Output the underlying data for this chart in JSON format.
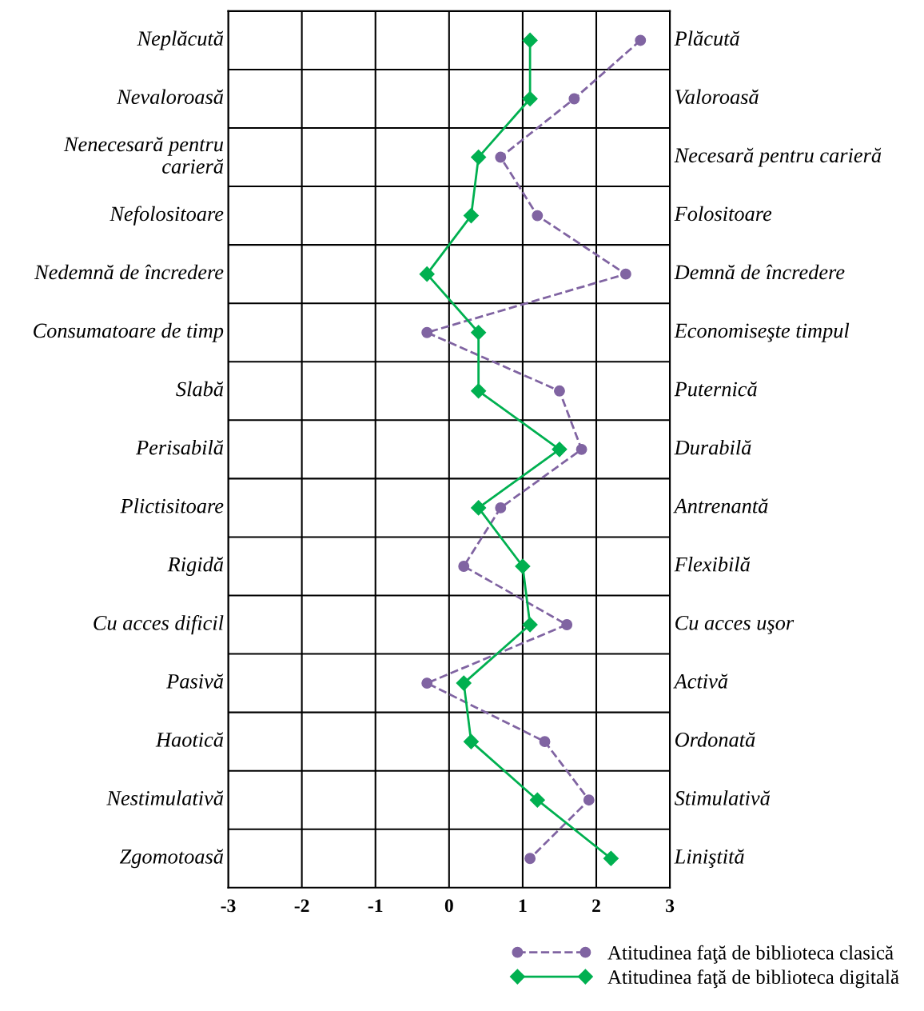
{
  "chart_data": {
    "type": "line",
    "orientation": "horizontal",
    "categories": [
      "Neplăcută",
      "Nevaloroasă",
      "Nenecesară pentru\ncarieră",
      "Nefolositoare",
      "Nedemnă de încredere",
      "Consumatoare de timp",
      "Slabă",
      "Perisabilă",
      "Plictisitoare",
      "Rigidă",
      "Cu acces dificil",
      "Pasivă",
      "Haotică",
      "Nestimulativă",
      "Zgomotoasă"
    ],
    "y2_categories": [
      "Plăcută",
      "Valoroasă",
      "Necesară pentru carieră",
      "Folositoare",
      "Demnă de încredere",
      "Economiseşte timpul",
      "Puternică",
      "Durabilă",
      "Antrenantă",
      "Flexibilă",
      "Cu acces uşor",
      "Activă",
      "Ordonată",
      "Stimulativă",
      "Liniştită"
    ],
    "series": [
      {
        "name": "Atitudinea faţă de biblioteca clasică",
        "color": "#8064a2",
        "marker": "circle",
        "line_style": "dashed",
        "values": [
          2.6,
          1.7,
          0.7,
          1.2,
          2.4,
          -0.3,
          1.5,
          1.8,
          0.7,
          0.2,
          1.6,
          -0.3,
          1.3,
          1.9,
          1.1
        ]
      },
      {
        "name": "Atitudinea faţă de biblioteca digitală",
        "color": "#00b050",
        "marker": "diamond",
        "line_style": "solid",
        "values": [
          1.1,
          1.1,
          0.4,
          0.3,
          -0.3,
          0.4,
          0.4,
          1.5,
          0.4,
          1.0,
          1.1,
          0.2,
          0.3,
          1.2,
          2.2
        ]
      }
    ],
    "xlim": [
      -3,
      3
    ],
    "xticks": [
      -3,
      -2,
      -1,
      0,
      1,
      2,
      3
    ],
    "grid": true,
    "legend": "bottom right"
  }
}
